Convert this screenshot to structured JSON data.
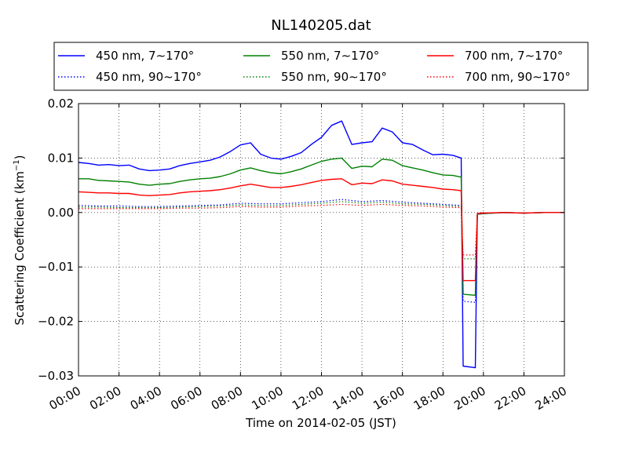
{
  "chart_data": {
    "type": "line",
    "title": "NL140205.dat",
    "xlabel": "Time on 2014-02-05 (JST)",
    "ylabel": "Scattering Coefficient (km",
    "ylabel_sup": "−1",
    "ylabel_tail": ")",
    "xlim": [
      0,
      24
    ],
    "ylim": [
      -0.03,
      0.02
    ],
    "grid": true,
    "legend_position": "top",
    "x_ticks": [
      0,
      2,
      4,
      6,
      8,
      10,
      12,
      14,
      16,
      18,
      20,
      22,
      24
    ],
    "x_tick_labels": [
      "00:00",
      "02:00",
      "04:00",
      "06:00",
      "08:00",
      "10:00",
      "12:00",
      "14:00",
      "16:00",
      "18:00",
      "20:00",
      "22:00",
      "24:00"
    ],
    "y_ticks": [
      0.02,
      0.01,
      0.0,
      -0.01,
      -0.02,
      -0.03
    ],
    "y_tick_labels": [
      "0.02",
      "0.01",
      "0.00",
      "−0.01",
      "−0.02",
      "−0.03"
    ],
    "series": [
      {
        "name": "450 nm, 7∼170°",
        "color": "#0000ff",
        "style": "solid",
        "x": [
          0,
          0.5,
          1,
          1.5,
          2,
          2.5,
          3,
          3.5,
          4,
          4.5,
          5,
          5.5,
          6,
          6.5,
          7,
          7.5,
          8,
          8.5,
          9,
          9.5,
          10,
          10.5,
          11,
          11.5,
          12,
          12.5,
          13,
          13.5,
          14,
          14.5,
          15,
          15.5,
          16,
          16.5,
          17,
          17.5,
          18,
          18.5,
          18.9,
          19.0,
          19.6,
          19.7,
          20,
          21,
          22,
          23,
          24
        ],
        "y": [
          0.0092,
          0.009,
          0.0087,
          0.0088,
          0.0086,
          0.0087,
          0.008,
          0.0077,
          0.0078,
          0.008,
          0.0086,
          0.009,
          0.0093,
          0.0096,
          0.0102,
          0.0112,
          0.0124,
          0.0128,
          0.0107,
          0.01,
          0.0098,
          0.0103,
          0.011,
          0.0125,
          0.0138,
          0.016,
          0.0168,
          0.0125,
          0.0128,
          0.013,
          0.0155,
          0.0148,
          0.0128,
          0.0125,
          0.0115,
          0.0106,
          0.0107,
          0.0105,
          0.01,
          -0.0282,
          -0.0285,
          -0.0003,
          -0.0002,
          0.0,
          -0.0001,
          0.0,
          0.0
        ]
      },
      {
        "name": "550 nm, 7∼170°",
        "color": "#008000",
        "style": "solid",
        "x": [
          0,
          0.5,
          1,
          1.5,
          2,
          2.5,
          3,
          3.5,
          4,
          4.5,
          5,
          5.5,
          6,
          6.5,
          7,
          7.5,
          8,
          8.5,
          9,
          9.5,
          10,
          10.5,
          11,
          11.5,
          12,
          12.5,
          13,
          13.5,
          14,
          14.5,
          15,
          15.5,
          16,
          16.5,
          17,
          17.5,
          18,
          18.5,
          18.9,
          19.0,
          19.6,
          19.7,
          20,
          21,
          22,
          23,
          24
        ],
        "y": [
          0.0062,
          0.0062,
          0.0059,
          0.0058,
          0.0057,
          0.0056,
          0.0052,
          0.005,
          0.0052,
          0.0053,
          0.0057,
          0.006,
          0.0062,
          0.0063,
          0.0066,
          0.0071,
          0.0078,
          0.0082,
          0.0077,
          0.0073,
          0.0071,
          0.0075,
          0.008,
          0.0087,
          0.0094,
          0.0098,
          0.01,
          0.0081,
          0.0085,
          0.0084,
          0.0098,
          0.0096,
          0.0086,
          0.0082,
          0.0078,
          0.0073,
          0.0069,
          0.0068,
          0.0065,
          -0.015,
          -0.0152,
          -0.0003,
          -0.0002,
          0.0,
          -0.0001,
          0.0,
          0.0
        ]
      },
      {
        "name": "700 nm, 7∼170°",
        "color": "#ff0000",
        "style": "solid",
        "x": [
          0,
          0.5,
          1,
          1.5,
          2,
          2.5,
          3,
          3.5,
          4,
          4.5,
          5,
          5.5,
          6,
          6.5,
          7,
          7.5,
          8,
          8.5,
          9,
          9.5,
          10,
          10.5,
          11,
          11.5,
          12,
          12.5,
          13,
          13.5,
          14,
          14.5,
          15,
          15.5,
          16,
          16.5,
          17,
          17.5,
          18,
          18.5,
          18.9,
          19.0,
          19.6,
          19.7,
          20,
          21,
          22,
          23,
          24
        ],
        "y": [
          0.0038,
          0.0037,
          0.0036,
          0.0036,
          0.0035,
          0.0035,
          0.0032,
          0.0031,
          0.0032,
          0.0033,
          0.0036,
          0.0038,
          0.0039,
          0.004,
          0.0042,
          0.0045,
          0.0049,
          0.0052,
          0.0049,
          0.0046,
          0.0046,
          0.0048,
          0.0051,
          0.0055,
          0.0059,
          0.0061,
          0.0062,
          0.0051,
          0.0054,
          0.0053,
          0.006,
          0.0058,
          0.0052,
          0.005,
          0.0048,
          0.0046,
          0.0043,
          0.0042,
          0.004,
          -0.0125,
          -0.0125,
          -0.0002,
          -0.0001,
          0.0,
          -0.0001,
          0.0,
          0.0
        ]
      },
      {
        "name": "450 nm, 90∼170°",
        "color": "#0000ff",
        "style": "dotted",
        "x": [
          0,
          1,
          2,
          3,
          4,
          5,
          6,
          7,
          8,
          9,
          10,
          11,
          12,
          13,
          14,
          15,
          16,
          17,
          18,
          18.9,
          19.0,
          19.6,
          19.7,
          20
        ],
        "y": [
          0.0013,
          0.0012,
          0.0012,
          0.0011,
          0.0011,
          0.0012,
          0.0013,
          0.0014,
          0.0017,
          0.0016,
          0.0016,
          0.0018,
          0.002,
          0.0024,
          0.002,
          0.0022,
          0.0019,
          0.0017,
          0.0015,
          0.0013,
          -0.0163,
          -0.0165,
          -0.0002,
          0.0
        ]
      },
      {
        "name": "550 nm, 90∼170°",
        "color": "#008000",
        "style": "dotted",
        "x": [
          0,
          1,
          2,
          3,
          4,
          5,
          6,
          7,
          8,
          9,
          10,
          11,
          12,
          13,
          14,
          15,
          16,
          17,
          18,
          18.9,
          19.0,
          19.6,
          19.7,
          20
        ],
        "y": [
          0.001,
          0.001,
          0.0009,
          0.0009,
          0.0009,
          0.001,
          0.0011,
          0.0012,
          0.0014,
          0.0013,
          0.0013,
          0.0015,
          0.0017,
          0.002,
          0.0017,
          0.0019,
          0.0016,
          0.0015,
          0.0013,
          0.0011,
          -0.0085,
          -0.0085,
          -0.0002,
          0.0
        ]
      },
      {
        "name": "700 nm, 90∼170°",
        "color": "#ff0000",
        "style": "dotted",
        "x": [
          0,
          1,
          2,
          3,
          4,
          5,
          6,
          7,
          8,
          9,
          10,
          11,
          12,
          13,
          14,
          15,
          16,
          17,
          18,
          18.9,
          19.0,
          19.6,
          19.7,
          20
        ],
        "y": [
          0.0007,
          0.0007,
          0.0007,
          0.0007,
          0.0007,
          0.0008,
          0.0008,
          0.0009,
          0.0011,
          0.001,
          0.001,
          0.0012,
          0.0013,
          0.0015,
          0.0013,
          0.0015,
          0.0013,
          0.0012,
          0.001,
          0.0009,
          -0.0078,
          -0.0078,
          -0.0001,
          0.0
        ]
      }
    ]
  }
}
